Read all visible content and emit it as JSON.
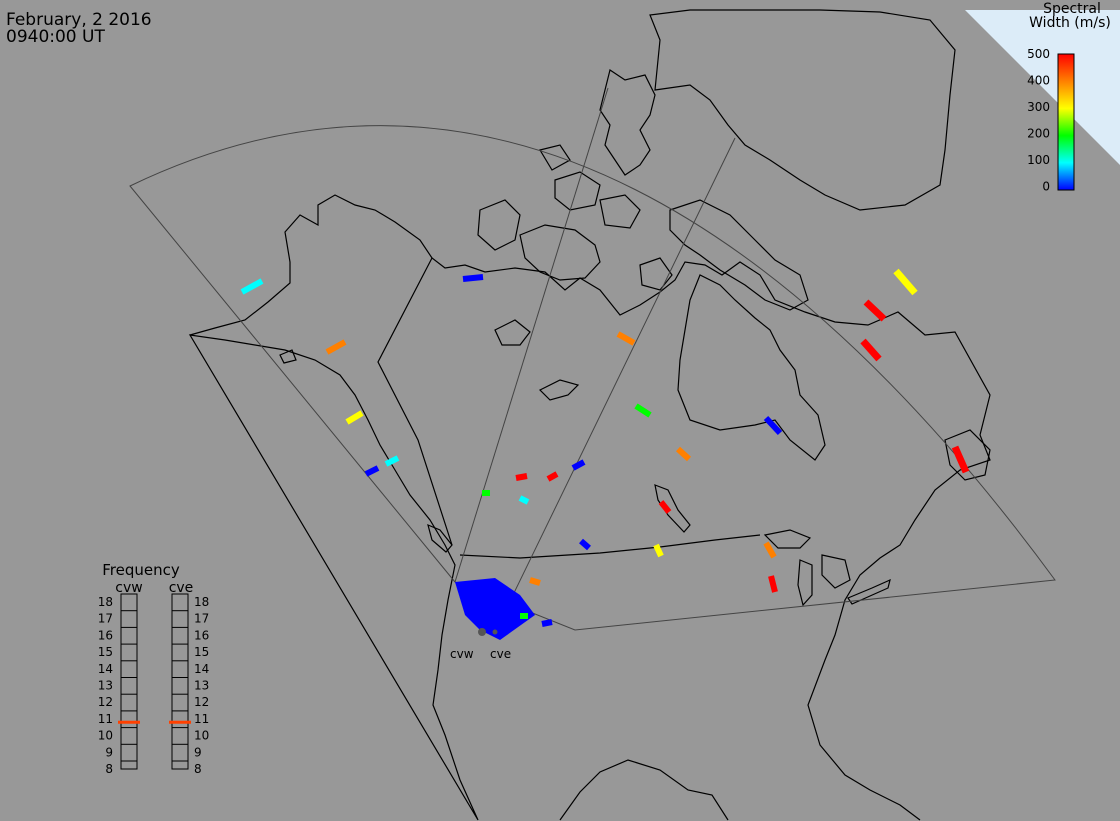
{
  "header": {
    "date": "February, 2 2016",
    "time": "0940:00 UT"
  },
  "colorbar": {
    "title_line1": "Spectral",
    "title_line2": "Width (m/s)",
    "ticks": [
      "500",
      "400",
      "300",
      "200",
      "100",
      "0"
    ],
    "min": 0,
    "max": 500,
    "colors": [
      "#0000ff",
      "#00ffff",
      "#00ff00",
      "#ffff00",
      "#ff8000",
      "#ff0000"
    ]
  },
  "radars": {
    "west_label": "cvw",
    "east_label": "cve"
  },
  "frequency_panel": {
    "title": "Frequency",
    "left_label": "cvw",
    "right_label": "cve",
    "scale": [
      "18",
      "17",
      "16",
      "15",
      "14",
      "13",
      "12",
      "11",
      "10",
      "9",
      "8"
    ],
    "scale_min": 8,
    "scale_max": 18,
    "cvw_value": 10.8,
    "cve_value": 10.8,
    "marker_color": "#ff4000"
  },
  "scatter_values": [
    120,
    380,
    20,
    340,
    10,
    70,
    50,
    150,
    0,
    420,
    30,
    480,
    400,
    460,
    260,
    220,
    10,
    500,
    350,
    480,
    170,
    440,
    30,
    500,
    280,
    480,
    40,
    450
  ]
}
